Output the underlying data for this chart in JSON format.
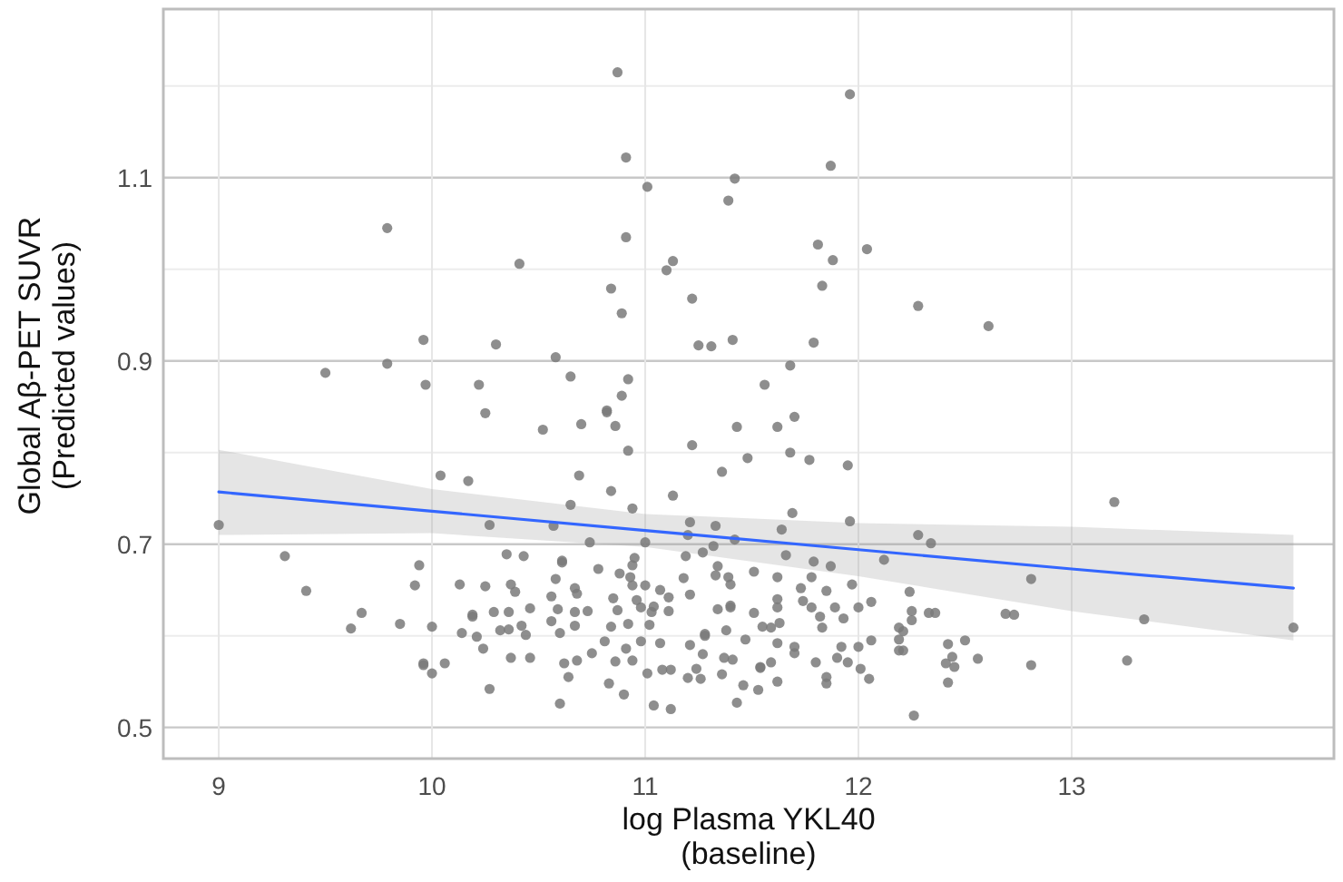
{
  "chart_data": {
    "type": "scatter",
    "xlabel": "log Plasma YKL40\n(baseline)",
    "ylabel": "Global Aβ-PET SUVR\n(Predicted values)",
    "xlim": [
      8.74,
      14.23
    ],
    "ylim": [
      0.466,
      1.284
    ],
    "xticks": [
      9,
      10,
      11,
      12,
      13
    ],
    "yticks": [
      0.5,
      {
        "value": 0.6,
        "label": null
      },
      0.7,
      {
        "value": 0.8,
        "label": null
      },
      0.9,
      {
        "value": 1.0,
        "label": null
      },
      1.1,
      {
        "value": 1.2,
        "label": null
      }
    ],
    "grid": true,
    "series": [
      {
        "type": "scatter",
        "marker": "circle",
        "color": "#7a7a7a",
        "x": [
          10.87,
          10.91,
          11.01,
          11.42,
          11.39,
          9.79,
          10.91,
          10.41,
          11.13,
          11.1,
          10.84,
          10.89,
          11.22,
          9.96,
          10.3,
          10.58,
          11.25,
          11.31,
          11.41,
          9.5,
          9.79,
          10.65,
          11.96,
          11.87,
          11.81,
          11.88,
          12.04,
          11.83,
          12.28,
          12.61,
          11.79,
          11.68,
          9.97,
          10.22,
          10.92,
          10.89,
          10.25,
          10.82,
          10.82,
          10.7,
          10.86,
          10.52,
          11.43,
          10.92,
          11.22,
          11.48,
          11.36,
          10.04,
          10.17,
          10.69,
          10.84,
          11.13,
          10.65,
          10.94,
          9.0,
          10.27,
          10.57,
          11.21,
          11.33,
          11.2,
          11.42,
          10.74,
          11.0,
          11.32,
          9.31,
          9.41,
          9.94,
          9.92,
          10.35,
          10.43,
          10.61,
          10.61,
          10.78,
          10.95,
          10.94,
          11.19,
          11.27,
          11.34,
          10.88,
          10.93,
          11.18,
          11.33,
          11.39,
          11.51,
          10.58,
          10.67,
          10.13,
          10.25,
          10.37,
          10.39,
          10.56,
          10.68,
          10.94,
          11.0,
          11.07,
          11.4,
          11.21,
          11.11,
          10.85,
          10.96,
          11.04,
          9.67,
          9.62,
          9.85,
          10.0,
          10.19,
          10.19,
          10.29,
          10.36,
          10.46,
          10.59,
          10.67,
          10.73,
          10.87,
          10.98,
          11.03,
          11.11,
          11.34,
          11.4,
          11.4,
          11.51,
          10.14,
          10.21,
          10.32,
          10.36,
          10.42,
          10.44,
          10.56,
          10.6,
          10.67,
          10.84,
          10.92,
          11.02,
          10.81,
          10.91,
          10.98,
          11.07,
          11.28,
          11.28,
          11.38,
          11.47,
          11.21,
          11.27,
          10.24,
          10.37,
          10.46,
          9.96,
          9.96,
          10.0,
          10.06,
          10.27,
          10.6,
          10.62,
          10.64,
          10.68,
          10.75,
          10.83,
          10.86,
          10.9,
          10.94,
          11.01,
          11.04,
          11.08,
          11.12,
          11.12,
          11.2,
          11.26,
          11.24,
          11.37,
          11.36,
          11.41,
          11.43,
          11.46,
          11.54,
          11.53,
          11.56,
          11.62,
          11.7,
          11.68,
          11.77,
          11.95,
          11.69,
          11.64,
          11.96,
          12.28,
          12.34,
          11.66,
          12.12,
          13.2,
          12.81,
          11.62,
          11.79,
          11.78,
          11.87,
          11.73,
          11.85,
          11.97,
          11.62,
          11.62,
          11.74,
          11.78,
          11.82,
          11.55,
          11.59,
          11.63,
          11.83,
          11.89,
          11.93,
          12.0,
          12.06,
          12.24,
          12.25,
          12.25,
          12.33,
          12.36,
          12.19,
          12.21,
          12.19,
          12.19,
          12.21,
          11.62,
          11.7,
          11.7,
          11.92,
          12.0,
          12.06,
          11.59,
          11.54,
          11.8,
          11.9,
          11.95,
          12.01,
          12.05,
          11.85,
          11.85,
          11.62,
          12.42,
          12.44,
          12.41,
          12.45,
          12.5,
          12.56,
          12.42,
          12.26,
          12.69,
          12.73,
          12.81,
          13.34,
          13.26,
          14.04
        ],
        "values": [
          1.215,
          1.122,
          1.09,
          1.099,
          1.075,
          1.045,
          1.035,
          1.006,
          1.009,
          0.999,
          0.979,
          0.952,
          0.968,
          0.923,
          0.918,
          0.904,
          0.917,
          0.916,
          0.923,
          0.887,
          0.897,
          0.883,
          1.191,
          1.113,
          1.027,
          1.01,
          1.022,
          0.982,
          0.96,
          0.938,
          0.92,
          0.895,
          0.874,
          0.874,
          0.88,
          0.862,
          0.843,
          0.844,
          0.846,
          0.831,
          0.829,
          0.825,
          0.828,
          0.802,
          0.808,
          0.794,
          0.779,
          0.775,
          0.769,
          0.775,
          0.758,
          0.753,
          0.743,
          0.739,
          0.721,
          0.721,
          0.72,
          0.724,
          0.72,
          0.71,
          0.705,
          0.702,
          0.702,
          0.698,
          0.687,
          0.649,
          0.677,
          0.655,
          0.689,
          0.687,
          0.68,
          0.682,
          0.673,
          0.685,
          0.677,
          0.687,
          0.691,
          0.676,
          0.668,
          0.664,
          0.663,
          0.666,
          0.664,
          0.67,
          0.662,
          0.652,
          0.656,
          0.654,
          0.656,
          0.648,
          0.643,
          0.646,
          0.655,
          0.655,
          0.65,
          0.656,
          0.645,
          0.642,
          0.641,
          0.639,
          0.632,
          0.625,
          0.608,
          0.613,
          0.61,
          0.621,
          0.623,
          0.626,
          0.626,
          0.63,
          0.629,
          0.626,
          0.627,
          0.628,
          0.631,
          0.626,
          0.627,
          0.629,
          0.631,
          0.633,
          0.625,
          0.603,
          0.599,
          0.606,
          0.607,
          0.611,
          0.601,
          0.616,
          0.603,
          0.611,
          0.61,
          0.613,
          0.612,
          0.594,
          0.586,
          0.594,
          0.592,
          0.6,
          0.602,
          0.606,
          0.596,
          0.59,
          0.58,
          0.586,
          0.576,
          0.576,
          0.568,
          0.57,
          0.559,
          0.57,
          0.542,
          0.526,
          0.57,
          0.555,
          0.573,
          0.581,
          0.548,
          0.572,
          0.536,
          0.573,
          0.559,
          0.524,
          0.563,
          0.52,
          0.563,
          0.554,
          0.553,
          0.564,
          0.576,
          0.558,
          0.574,
          0.527,
          0.546,
          0.566,
          0.541,
          0.874,
          0.828,
          0.839,
          0.8,
          0.792,
          0.786,
          0.734,
          0.716,
          0.725,
          0.71,
          0.701,
          0.688,
          0.683,
          0.746,
          0.662,
          0.664,
          0.681,
          0.664,
          0.676,
          0.652,
          0.649,
          0.656,
          0.64,
          0.631,
          0.638,
          0.631,
          0.621,
          0.61,
          0.609,
          0.614,
          0.609,
          0.631,
          0.619,
          0.631,
          0.637,
          0.648,
          0.627,
          0.617,
          0.625,
          0.625,
          0.609,
          0.605,
          0.596,
          0.584,
          0.584,
          0.592,
          0.588,
          0.581,
          0.588,
          0.588,
          0.595,
          0.571,
          0.565,
          0.571,
          0.576,
          0.571,
          0.564,
          0.553,
          0.555,
          0.548,
          0.55,
          0.591,
          0.577,
          0.57,
          0.566,
          0.595,
          0.575,
          0.549,
          0.513,
          0.624,
          0.623,
          0.568,
          0.618,
          0.573,
          0.609
        ]
      },
      {
        "type": "line",
        "marker": "none",
        "color": "#3366ff",
        "x": [
          9,
          10,
          11,
          12,
          13,
          14.04
        ],
        "values": [
          0.757,
          0.736,
          0.715,
          0.694,
          0.673,
          0.652
        ],
        "lower": [
          0.71,
          0.712,
          0.697,
          0.665,
          0.627,
          0.595
        ],
        "upper": [
          0.803,
          0.76,
          0.733,
          0.723,
          0.719,
          0.71
        ]
      }
    ]
  }
}
